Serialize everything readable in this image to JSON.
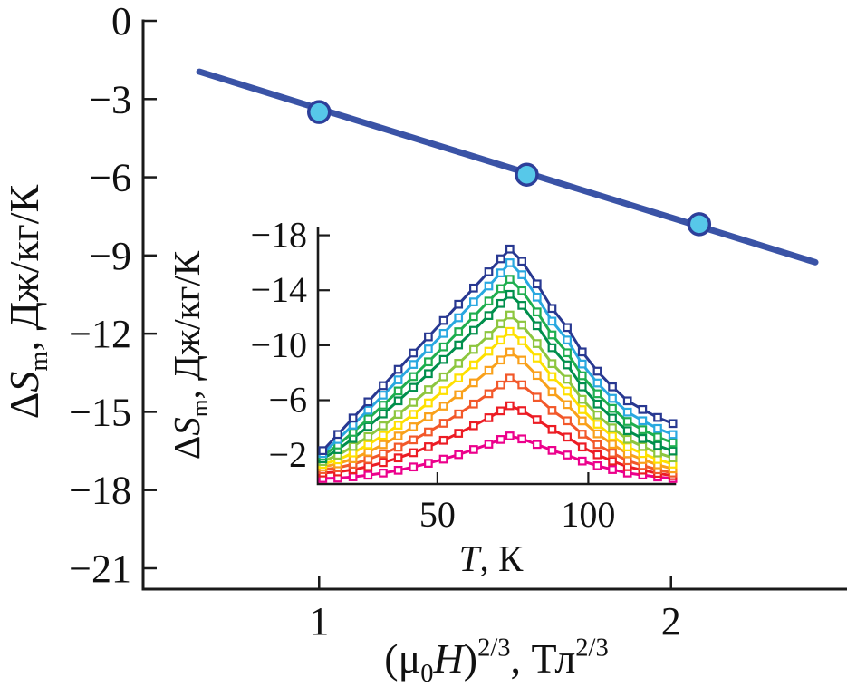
{
  "figure": {
    "background": "#ffffff",
    "description": "Magnetocaloric entropy change: main plot of peak ΔSm vs (μ0H)^(2/3) with linear fit, inset of ΔSm(T) curves at different fields"
  },
  "chart_data": [
    {
      "id": "main",
      "type": "scatter",
      "xlabel": "(μ0H)2/3, Тл2/3",
      "xlabel_parts": [
        {
          "t": "(μ",
          "s": "n"
        },
        {
          "t": "0",
          "s": "sub"
        },
        {
          "t": "H",
          "s": "i"
        },
        {
          "t": ")",
          "s": "n"
        },
        {
          "t": "2/3",
          "s": "sup"
        },
        {
          "t": ", Тл",
          "s": "n"
        },
        {
          "t": "2/3",
          "s": "sup"
        }
      ],
      "ylabel": "ΔSm, Дж/кг/К",
      "ylabel_parts": [
        {
          "t": "Δ",
          "s": "n"
        },
        {
          "t": "S",
          "s": "i"
        },
        {
          "t": "m",
          "s": "sub"
        },
        {
          "t": ", Дж/кг/К",
          "s": "n"
        }
      ],
      "xlim": [
        0.5,
        2.5
      ],
      "ylim": [
        -21.8,
        0
      ],
      "grid": false,
      "legend": "none",
      "x_tick_values": [
        1,
        2
      ],
      "x_tick_labels": [
        "1",
        "2"
      ],
      "y_tick_values": [
        0,
        -3,
        -6,
        -9,
        -12,
        -15,
        -18,
        -21
      ],
      "y_tick_labels": [
        "0",
        "−3",
        "−6",
        "−9",
        "−12",
        "−15",
        "−18",
        "−21"
      ],
      "series": [
        {
          "name": "linear-fit",
          "role": "fit-line",
          "kind": "line",
          "color": "#3a53a6",
          "x": [
            0.66,
            2.41
          ],
          "y": [
            -1.95,
            -9.26
          ]
        },
        {
          "name": "data-points",
          "role": "data-points",
          "kind": "scatter",
          "marker_fill": "#57c8e9",
          "marker_edge": "#2d3f9a",
          "x": [
            1.0,
            1.59,
            2.08
          ],
          "y": [
            -3.5,
            -5.9,
            -7.8
          ]
        }
      ]
    },
    {
      "id": "inset",
      "type": "line",
      "xlabel": "T, К",
      "xlabel_parts": [
        {
          "t": "T",
          "s": "i"
        },
        {
          "t": ", К",
          "s": "n"
        }
      ],
      "ylabel": "ΔSm, Дж/кг/К",
      "ylabel_parts": [
        {
          "t": "Δ",
          "s": "n"
        },
        {
          "t": "S",
          "s": "i"
        },
        {
          "t": "m",
          "s": "sub"
        },
        {
          "t": ", Дж/кг/К",
          "s": "n"
        }
      ],
      "xlim": [
        10.4,
        128.7
      ],
      "ylim": [
        0.1,
        -18.5
      ],
      "y_axis_inverted": true,
      "grid": false,
      "legend": "none",
      "x_tick_values": [
        50,
        100
      ],
      "x_tick_labels": [
        "50",
        "100"
      ],
      "y_tick_values": [
        -18,
        -14,
        -10,
        -6,
        -2
      ],
      "y_tick_labels": [
        "−18",
        "−14",
        "−10",
        "−6",
        "−2"
      ],
      "x": [
        12,
        17,
        22,
        27,
        32,
        37,
        42,
        47,
        52,
        57,
        62,
        67,
        71,
        74,
        78,
        83,
        88,
        93,
        98,
        103,
        108,
        113,
        118,
        123,
        128
      ],
      "series": [
        {
          "name": "curve-1",
          "role": "curve",
          "color": "#283891",
          "values": [
            -2.33,
            -3.51,
            -4.7,
            -5.88,
            -7.06,
            -8.24,
            -9.43,
            -10.61,
            -11.8,
            -12.98,
            -14.16,
            -15.34,
            -16.29,
            -17.0,
            -16.11,
            -14.46,
            -12.68,
            -11.29,
            -9.51,
            -8.11,
            -6.97,
            -5.95,
            -5.32,
            -4.74,
            -4.3
          ]
        },
        {
          "name": "curve-2",
          "role": "curve",
          "color": "#29a8e0",
          "values": [
            -2.12,
            -3.14,
            -4.19,
            -5.27,
            -6.37,
            -7.48,
            -8.6,
            -9.73,
            -10.86,
            -12.0,
            -13.15,
            -14.31,
            -15.26,
            -16.0,
            -15.13,
            -13.5,
            -11.75,
            -10.38,
            -8.63,
            -7.25,
            -6.13,
            -5.13,
            -4.5,
            -3.94,
            -3.5
          ]
        },
        {
          "name": "curve-3",
          "role": "curve",
          "color": "#1fae4f",
          "values": [
            -1.93,
            -2.74,
            -3.66,
            -4.63,
            -5.64,
            -6.67,
            -7.72,
            -8.79,
            -9.88,
            -10.98,
            -12.08,
            -13.21,
            -14.12,
            -14.8,
            -13.97,
            -12.42,
            -10.75,
            -9.45,
            -7.78,
            -6.47,
            -5.4,
            -4.45,
            -3.85,
            -3.32,
            -2.9
          ]
        },
        {
          "name": "curve-4",
          "role": "curve",
          "color": "#008f4c",
          "values": [
            -1.74,
            -2.4,
            -3.21,
            -4.08,
            -5.0,
            -5.95,
            -6.93,
            -7.93,
            -8.96,
            -10.02,
            -11.08,
            -12.16,
            -13.04,
            -13.7,
            -12.9,
            -11.42,
            -9.82,
            -8.57,
            -6.97,
            -5.72,
            -4.69,
            -3.78,
            -3.21,
            -2.7,
            -2.3
          ]
        },
        {
          "name": "curve-5",
          "role": "curve",
          "color": "#8dc63f",
          "values": [
            -1.54,
            -2.0,
            -2.63,
            -3.35,
            -4.13,
            -4.97,
            -5.84,
            -6.76,
            -7.7,
            -8.68,
            -9.69,
            -10.72,
            -11.56,
            -12.2,
            -11.47,
            -10.12,
            -8.66,
            -7.52,
            -6.06,
            -4.92,
            -3.98,
            -3.15,
            -2.63,
            -2.16,
            -1.8
          ]
        },
        {
          "name": "curve-6",
          "role": "curve",
          "color": "#fee000",
          "values": [
            -1.34,
            -1.66,
            -2.16,
            -2.76,
            -3.44,
            -4.18,
            -4.97,
            -5.8,
            -6.69,
            -7.61,
            -8.57,
            -9.56,
            -10.37,
            -11.0,
            -10.32,
            -9.07,
            -7.72,
            -6.66,
            -5.31,
            -4.25,
            -3.38,
            -2.6,
            -2.12,
            -1.69,
            -1.35
          ]
        },
        {
          "name": "curve-7",
          "role": "curve",
          "color": "#f9a11b",
          "values": [
            -1.15,
            -1.37,
            -1.74,
            -2.22,
            -2.77,
            -3.39,
            -4.06,
            -4.79,
            -5.57,
            -6.4,
            -7.26,
            -8.17,
            -8.92,
            -9.5,
            -8.91,
            -7.8,
            -6.61,
            -5.68,
            -4.49,
            -3.55,
            -2.79,
            -2.11,
            -1.68,
            -1.3,
            -1.0
          ]
        },
        {
          "name": "curve-8",
          "role": "curve",
          "color": "#f2582a",
          "values": [
            -0.95,
            -1.08,
            -1.34,
            -1.69,
            -2.1,
            -2.58,
            -3.11,
            -3.69,
            -4.32,
            -5.0,
            -5.72,
            -6.47,
            -7.11,
            -7.6,
            -7.12,
            -6.22,
            -5.25,
            -4.5,
            -3.53,
            -2.77,
            -2.15,
            -1.6,
            -1.25,
            -0.94,
            -0.7
          ]
        },
        {
          "name": "curve-9",
          "role": "curve",
          "color": "#ec1c24",
          "values": [
            -0.7,
            -0.78,
            -0.94,
            -1.17,
            -1.46,
            -1.8,
            -2.18,
            -2.61,
            -3.08,
            -3.59,
            -4.14,
            -4.72,
            -5.22,
            -5.6,
            -5.24,
            -4.58,
            -3.87,
            -3.31,
            -2.59,
            -2.03,
            -1.57,
            -1.16,
            -0.91,
            -0.68,
            -0.5
          ]
        },
        {
          "name": "curve-10",
          "role": "curve",
          "color": "#ec008c",
          "values": [
            -0.3,
            -0.33,
            -0.42,
            -0.54,
            -0.7,
            -0.9,
            -1.14,
            -1.41,
            -1.71,
            -2.04,
            -2.41,
            -2.8,
            -3.14,
            -3.4,
            -3.18,
            -2.78,
            -2.35,
            -2.01,
            -1.57,
            -1.23,
            -0.95,
            -0.7,
            -0.55,
            -0.41,
            -0.3
          ]
        }
      ]
    }
  ]
}
